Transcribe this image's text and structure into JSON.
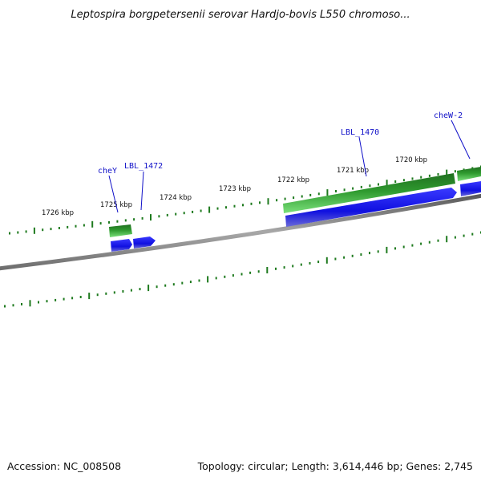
{
  "title": "Leptospira borgpetersenii serovar Hardjo-bovis L550 chromoso...",
  "footer": {
    "accession": "Accession: NC_008508",
    "summary": "Topology: circular; Length: 3,614,446 bp; Genes: 2,745"
  },
  "colors": {
    "backbone": "#8a8a8a",
    "tick": "#1e7a1e",
    "gene_forward": "#2fa02f",
    "gene_reverse": "#1414e6",
    "label": "#1010c8"
  },
  "scale_labels": [
    "1726 kbp",
    "1725 kbp",
    "1724 kbp",
    "1723 kbp",
    "1722 kbp",
    "1721 kbp",
    "1720 kbp"
  ],
  "gene_labels": [
    {
      "name": "cheY"
    },
    {
      "name": "LBL_1472"
    },
    {
      "name": "LBL_1470"
    },
    {
      "name": "cheW-2"
    }
  ]
}
